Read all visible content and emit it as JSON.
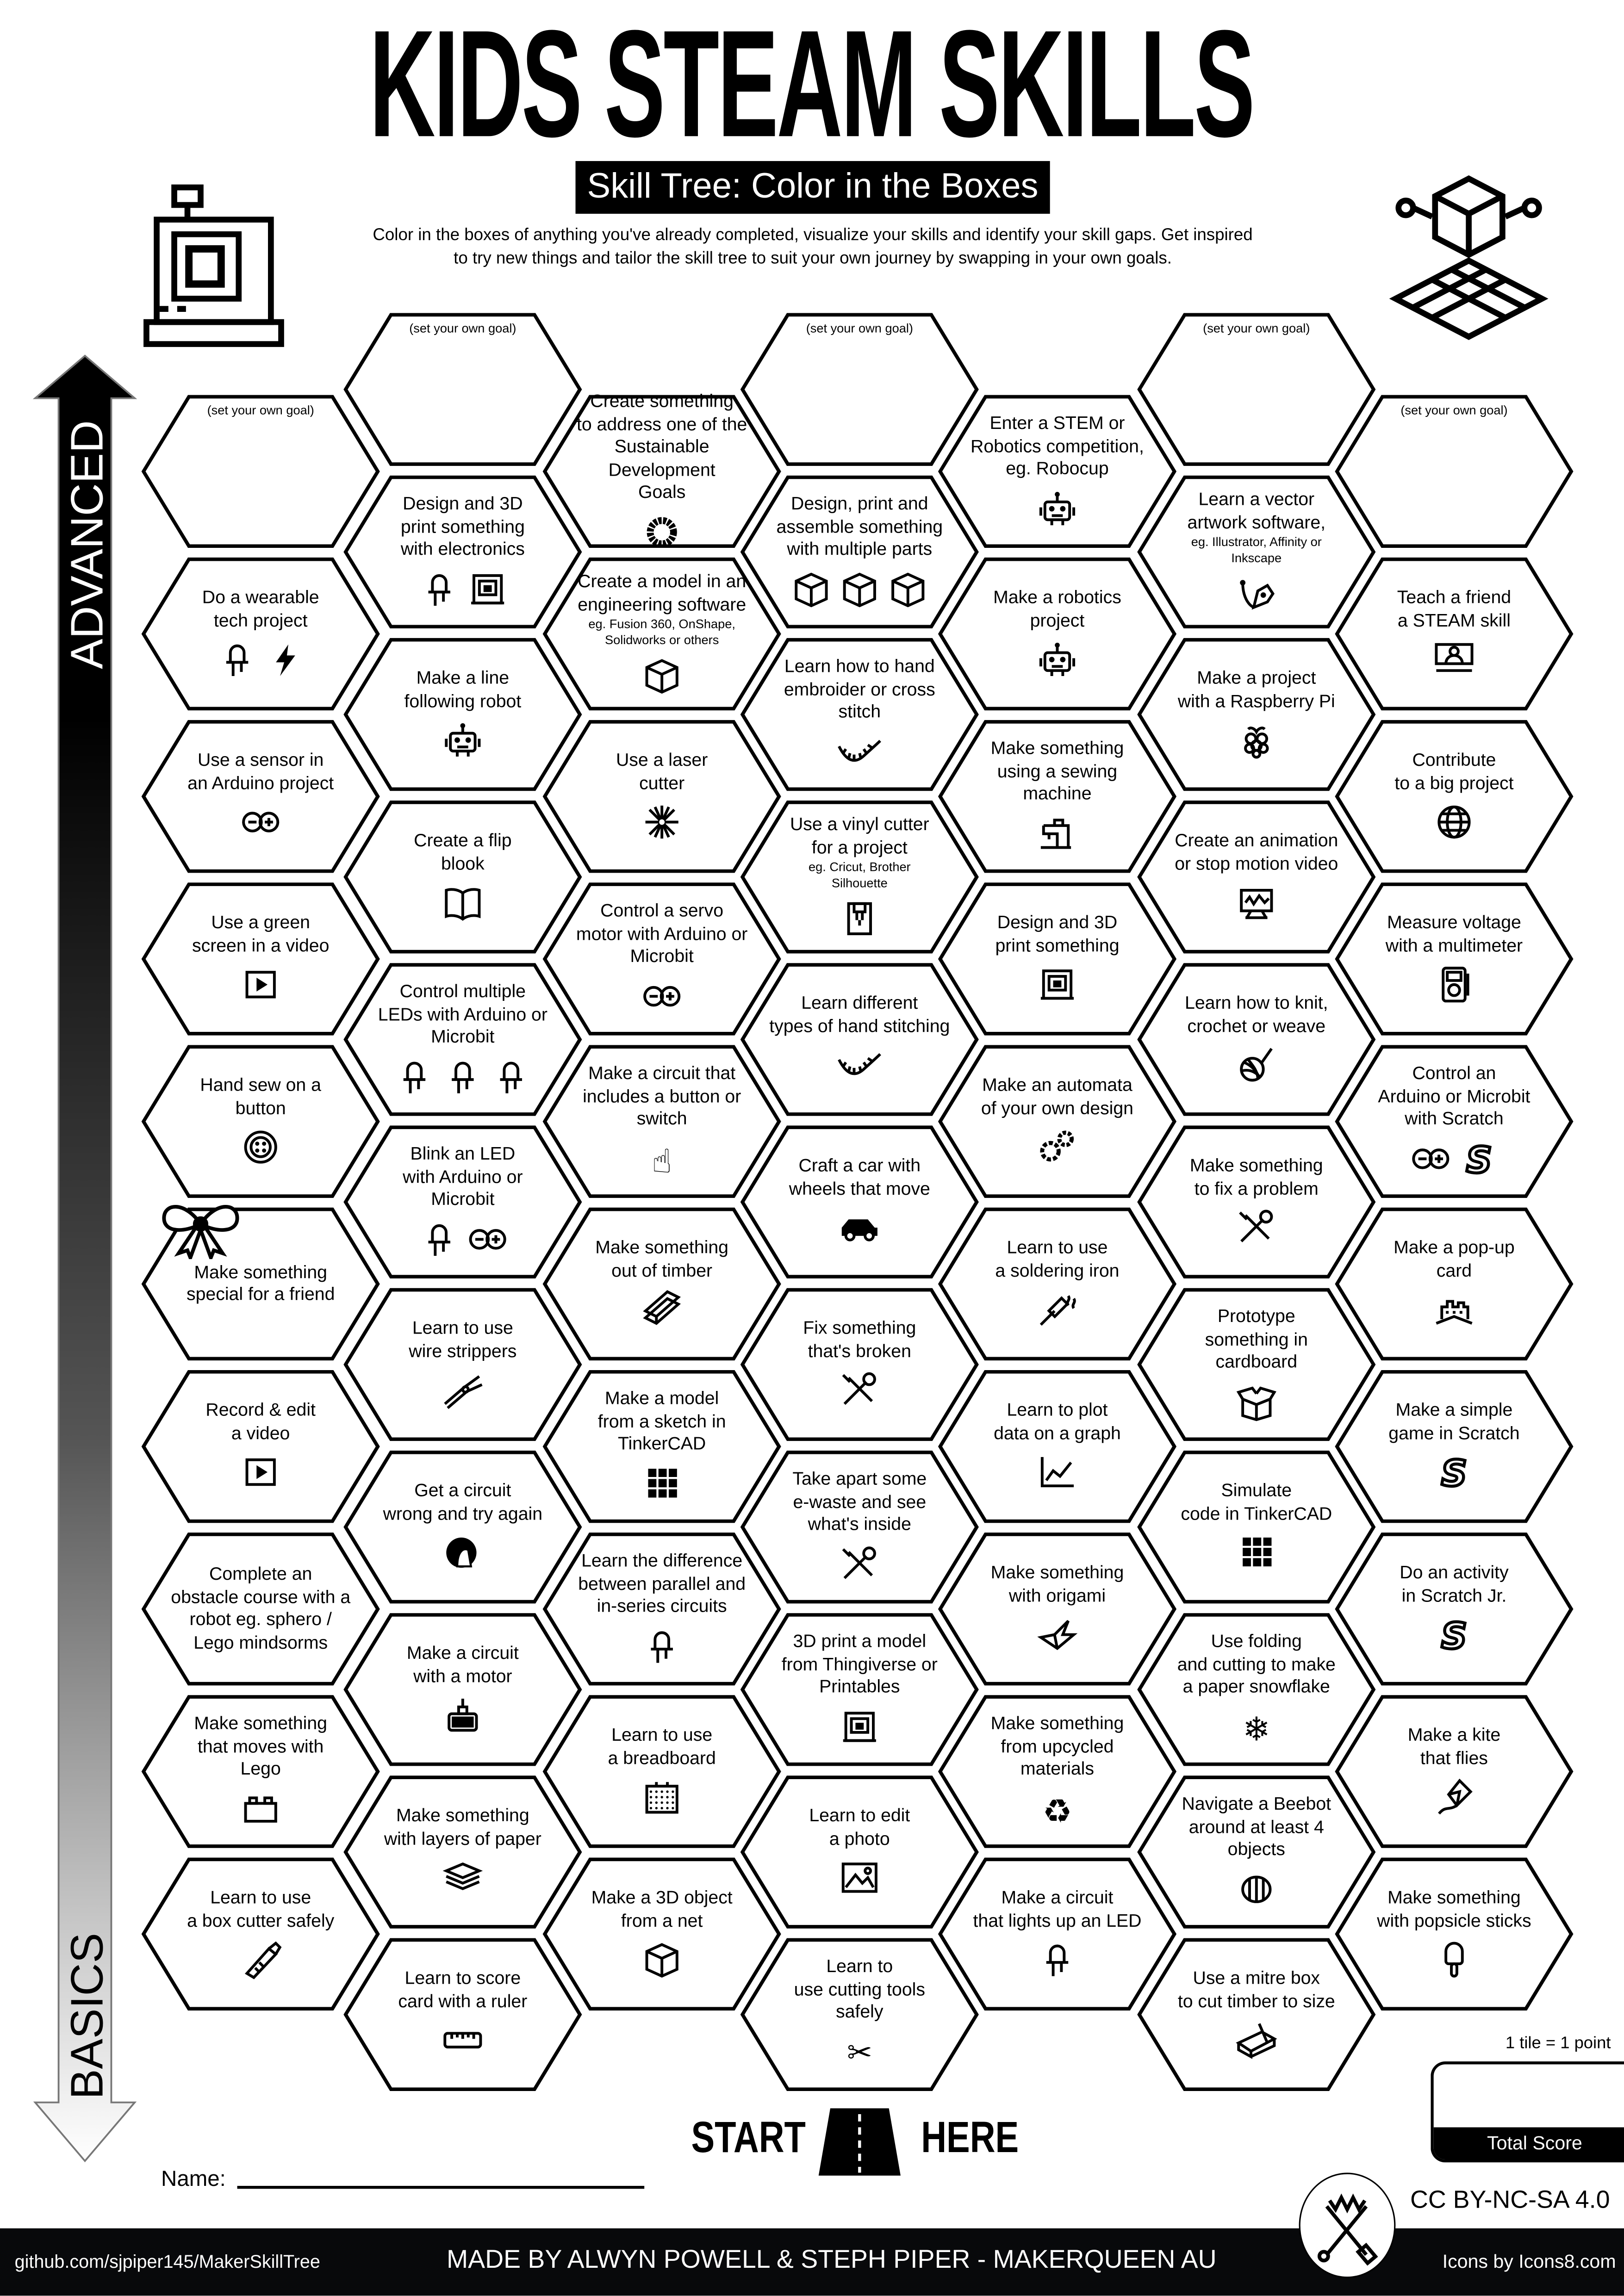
{
  "header": {
    "title": "KIDS STEAM SKILLS",
    "banner": "Skill Tree: Color in the Boxes",
    "intro": "Color in the boxes of anything you've already completed, visualize your skills and identify your skill gaps.  Get inspired\nto try new things and tailor the skill tree to suit your own journey by swapping in your own goals."
  },
  "axis": {
    "top_label": "ADVANCED",
    "bottom_label": "BASICS"
  },
  "columns": [
    [
      {
        "goal": true,
        "label": "(set your own goal)"
      },
      {
        "label": "Do a wearable\ntech project",
        "icons": [
          "led",
          "bolt"
        ]
      },
      {
        "label": "Use a sensor in\nan Arduino project",
        "icons": [
          "arduino"
        ]
      },
      {
        "label": "Use a green\nscreen in a video",
        "icons": [
          "play"
        ]
      },
      {
        "label": "Hand sew on a\nbutton",
        "icons": [
          "button"
        ]
      },
      {
        "label": "Make something\nspecial for a friend",
        "icons": []
      },
      {
        "label": "Record & edit\na video",
        "icons": [
          "play"
        ]
      },
      {
        "label": "Complete an\nobstacle course with a\nrobot eg. sphero /\nLego mindsorms",
        "icons": []
      },
      {
        "label": "Make something\nthat moves with\nLego",
        "icons": [
          "lego"
        ]
      },
      {
        "label": "Learn to use\na box cutter safely",
        "icons": [
          "box-cutter"
        ]
      }
    ],
    [
      {
        "goal": true,
        "label": "(set your own goal)"
      },
      {
        "label": "Design and 3D\nprint something\nwith electronics",
        "icons": [
          "led",
          "printer"
        ]
      },
      {
        "label": "Make a line\nfollowing robot",
        "icons": [
          "robot"
        ]
      },
      {
        "label": "Create a flip\nblook",
        "icons": [
          "book"
        ]
      },
      {
        "label": "Control multiple\nLEDs with Arduino or\nMicrobit",
        "icons": [
          "led",
          "led",
          "led"
        ]
      },
      {
        "label": "Blink an LED\nwith Arduino or\nMicrobit",
        "icons": [
          "led",
          "arduino"
        ]
      },
      {
        "label": "Learn to use\nwire strippers",
        "icons": [
          "wire-strippers"
        ]
      },
      {
        "label": "Get a circuit\nwrong and try again",
        "icons": [
          "facepalm"
        ]
      },
      {
        "label": "Make a circuit\nwith a motor",
        "icons": [
          "motor"
        ]
      },
      {
        "label": "Make something\nwith layers of paper",
        "icons": [
          "layers"
        ]
      },
      {
        "label": "Learn to score\ncard with a ruler",
        "icons": [
          "ruler"
        ]
      }
    ],
    [
      {
        "label": "Create something\nto address one of the\nSustainable Development\nGoals",
        "icons": [
          "sdg-ring"
        ]
      },
      {
        "label": "Create a model in an\nengineering software",
        "sub": "eg. Fusion 360, OnShape,\nSolidworks or others",
        "icons": [
          "cube"
        ]
      },
      {
        "label": "Use a laser\ncutter",
        "icons": [
          "laser"
        ]
      },
      {
        "label": "Control a servo\nmotor with Arduino or\nMicrobit",
        "icons": [
          "arduino"
        ]
      },
      {
        "label": "Make a circuit that\nincludes a button or\nswitch",
        "icons": [
          "finger-press"
        ]
      },
      {
        "label": "Make something\nout of timber",
        "icons": [
          "timber"
        ]
      },
      {
        "label": "Make a model\nfrom a sketch in\nTinkerCAD",
        "icons": [
          "tinkercad"
        ]
      },
      {
        "label": "Learn the difference\nbetween parallel and\nin-series circuits",
        "icons": [
          "led"
        ]
      },
      {
        "label": "Learn to use\na breadboard",
        "icons": [
          "breadboard"
        ]
      },
      {
        "label": "Make a 3D object\nfrom a net",
        "icons": [
          "cube"
        ]
      }
    ],
    [
      {
        "goal": true,
        "label": "(set your own goal)"
      },
      {
        "label": "Design, print and\nassemble something\nwith multiple parts",
        "icons": [
          "cube",
          "cube",
          "cube"
        ]
      },
      {
        "label": "Learn how to hand\nembroider or cross stitch",
        "icons": [
          "stitch"
        ]
      },
      {
        "label": "Use a vinyl cutter\nfor a project",
        "sub": "eg. Cricut, Brother\nSilhouette",
        "icons": [
          "vinyl-cutter"
        ]
      },
      {
        "label": "Learn different\ntypes of hand stitching",
        "icons": [
          "stitch"
        ]
      },
      {
        "label": "Craft a car with\nwheels that move",
        "icons": [
          "car"
        ]
      },
      {
        "label": "Fix something\nthat's broken",
        "icons": [
          "tools"
        ]
      },
      {
        "label": "Take apart some\ne-waste and see\nwhat's inside",
        "icons": [
          "tools"
        ]
      },
      {
        "label": "3D print a model\nfrom Thingiverse or\nPrintables",
        "icons": [
          "printer"
        ]
      },
      {
        "label": "Learn to edit\na photo",
        "icons": [
          "photo"
        ]
      },
      {
        "label": "Learn to\nuse cutting tools\nsafely",
        "icons": [
          "scissors"
        ]
      }
    ],
    [
      {
        "label": "Enter a STEM or\nRobotics competition,\neg. Robocup",
        "icons": [
          "robot"
        ]
      },
      {
        "label": "Make a robotics\nproject",
        "icons": [
          "robot"
        ]
      },
      {
        "label": "Make something\nusing a sewing\nmachine",
        "icons": [
          "sewing-machine"
        ]
      },
      {
        "label": "Design and 3D\nprint something",
        "icons": [
          "printer"
        ]
      },
      {
        "label": "Make an automata\nof your own design",
        "icons": [
          "gears"
        ]
      },
      {
        "label": "Learn to use\na soldering iron",
        "icons": [
          "soldering-iron"
        ]
      },
      {
        "label": "Learn to plot\ndata on a graph",
        "icons": [
          "graph"
        ]
      },
      {
        "label": "Make something\nwith origami",
        "icons": [
          "origami"
        ]
      },
      {
        "label": "Make something\nfrom upcycled\nmaterials",
        "icons": [
          "recycle"
        ]
      },
      {
        "label": "Make a circuit\nthat lights up an LED",
        "icons": [
          "led"
        ]
      }
    ],
    [
      {
        "goal": true,
        "label": "(set your own goal)"
      },
      {
        "label": "Learn a vector\nartwork software,",
        "sub": "eg. Illustrator, Affinity or\nInkscape",
        "icons": [
          "pen-tool"
        ]
      },
      {
        "label": "Make a project\nwith a Raspberry Pi",
        "icons": [
          "raspberry-pi"
        ]
      },
      {
        "label": "Create an animation\nor stop motion video",
        "icons": [
          "animation"
        ]
      },
      {
        "label": "Learn how to knit,\ncrochet or weave",
        "icons": [
          "yarn"
        ]
      },
      {
        "label": "Make something\nto fix a problem",
        "icons": [
          "tools"
        ]
      },
      {
        "label": "Prototype\nsomething in cardboard",
        "icons": [
          "box"
        ]
      },
      {
        "label": "Simulate\ncode in TinkerCAD",
        "icons": [
          "tinkercad"
        ]
      },
      {
        "label": "Use folding\nand cutting to make\na paper snowflake",
        "icons": [
          "snowflake"
        ]
      },
      {
        "label": "Navigate a Beebot\naround at least 4\nobjects",
        "icons": [
          "beebot"
        ]
      },
      {
        "label": "Use a mitre box\nto cut timber to size",
        "icons": [
          "mitre-box"
        ]
      }
    ],
    [
      {
        "goal": true,
        "label": "(set your own goal)"
      },
      {
        "label": "Teach a friend\na STEAM skill",
        "icons": [
          "teacher"
        ]
      },
      {
        "label": "Contribute\nto a big project",
        "icons": [
          "globe"
        ]
      },
      {
        "label": "Measure voltage\nwith a multimeter",
        "icons": [
          "multimeter"
        ]
      },
      {
        "label": "Control an\nArduino or Microbit\nwith Scratch",
        "icons": [
          "arduino",
          "scratch"
        ]
      },
      {
        "label": "Make a pop-up\ncard",
        "icons": [
          "popup-card"
        ]
      },
      {
        "label": "Make a simple\ngame in Scratch",
        "icons": [
          "scratch"
        ]
      },
      {
        "label": "Do an activity\nin Scratch Jr.",
        "icons": [
          "scratch"
        ]
      },
      {
        "label": "Make a kite\nthat flies",
        "icons": [
          "kite"
        ]
      },
      {
        "label": "Make something\nwith popsicle sticks",
        "icons": [
          "popsicle"
        ]
      }
    ]
  ],
  "start": {
    "left": "START",
    "right": "HERE"
  },
  "name_label": "Name:",
  "score": {
    "note": "1 tile = 1 point",
    "label": "Total Score"
  },
  "license": "CC BY-NC-SA 4.0",
  "footer": {
    "github": "github.com/sjpiper145/MakerSkillTree",
    "credits": "MADE BY ALWYN POWELL & STEPH PIPER  -  MAKERQUEEN AU",
    "icons_credit": "Icons by Icons8.com"
  }
}
